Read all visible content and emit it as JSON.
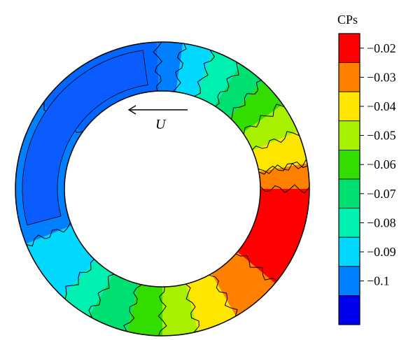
{
  "colorbar": {
    "title": "CPs",
    "levels": [
      {
        "label": "−0.02",
        "color": "#ff0000"
      },
      {
        "label": "−0.03",
        "color": "#ff7f00"
      },
      {
        "label": "−0.04",
        "color": "#ffe600"
      },
      {
        "label": "−0.05",
        "color": "#a6f000"
      },
      {
        "label": "−0.06",
        "color": "#33dd00"
      },
      {
        "label": "−0.07",
        "color": "#00e070"
      },
      {
        "label": "−0.08",
        "color": "#00f0b0"
      },
      {
        "label": "−0.09",
        "color": "#00d8ff"
      },
      {
        "label": "−0.1",
        "color": "#0080ff"
      },
      {
        "label": "",
        "color": "#0000ee"
      }
    ]
  },
  "annotation": {
    "velocity_symbol": "U"
  },
  "contour_bands": [
    {
      "color": "#ff0000"
    },
    {
      "color": "#ff7f00"
    },
    {
      "color": "#ffe600"
    },
    {
      "color": "#a6f000"
    },
    {
      "color": "#33dd00"
    },
    {
      "color": "#00e070"
    },
    {
      "color": "#00f0b0"
    },
    {
      "color": "#00d8ff"
    },
    {
      "color": "#0080ff"
    },
    {
      "color": "#0066ff"
    },
    {
      "color": "#0080ff"
    },
    {
      "color": "#00d8ff"
    },
    {
      "color": "#00f0b0"
    },
    {
      "color": "#00e070"
    },
    {
      "color": "#33dd00"
    },
    {
      "color": "#a6f000"
    },
    {
      "color": "#ffe600"
    },
    {
      "color": "#ff7f00"
    },
    {
      "color": "#ff0000"
    }
  ]
}
